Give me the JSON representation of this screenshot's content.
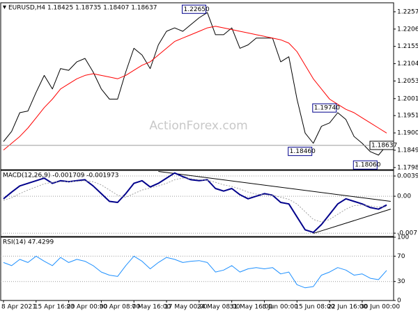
{
  "chart_data": [
    {
      "type": "line",
      "title": "EURUSD,H4  1.18425 1.18735 1.18407 1.18637",
      "watermark": "ActionForex.com",
      "ylim": [
        1.1792,
        1.2284
      ],
      "yticks": [
        1.22575,
        1.22065,
        1.21555,
        1.21045,
        1.20535,
        1.20015,
        1.19515,
        1.19005,
        1.18495,
        1.17985
      ],
      "series": [
        {
          "color": "#000000",
          "style": "solid",
          "values": [
            1.1875,
            1.1905,
            1.196,
            1.1965,
            1.202,
            1.207,
            1.203,
            1.209,
            1.2085,
            1.211,
            1.212,
            1.208,
            1.203,
            1.2,
            1.2,
            1.208,
            1.215,
            1.213,
            1.209,
            1.216,
            1.22,
            1.221,
            1.22,
            1.222,
            1.224,
            1.2255,
            1.219,
            1.219,
            1.221,
            1.215,
            1.216,
            1.218,
            1.218,
            1.218,
            1.211,
            1.2125,
            1.2,
            1.19,
            1.187,
            1.192,
            1.193,
            1.196,
            1.194,
            1.189,
            1.187,
            1.1845,
            1.1835,
            1.1864
          ]
        },
        {
          "color": "#ff0000",
          "style": "solid",
          "values": [
            1.185,
            1.187,
            1.189,
            1.1915,
            1.1945,
            1.1975,
            1.2,
            1.203,
            1.2045,
            1.206,
            1.207,
            1.2075,
            1.207,
            1.2065,
            1.206,
            1.207,
            1.2085,
            1.21,
            1.211,
            1.213,
            1.215,
            1.217,
            1.218,
            1.219,
            1.22,
            1.221,
            1.2215,
            1.221,
            1.2205,
            1.22,
            1.2195,
            1.219,
            1.2185,
            1.218,
            1.2175,
            1.2165,
            1.214,
            1.21,
            1.206,
            1.203,
            1.2,
            1.1985,
            1.197,
            1.196,
            1.1945,
            1.193,
            1.1915,
            1.19
          ]
        }
      ],
      "annotations": [
        {
          "text": "1.22650",
          "x": 25,
          "y": 1.2265
        },
        {
          "text": "1.19740",
          "x": 41,
          "y": 1.1974
        },
        {
          "text": "1.18460",
          "x": 38,
          "y": 1.1846
        },
        {
          "text": "1.18060",
          "x": 46,
          "y": 1.1806
        },
        {
          "text": "1.18637",
          "y": 1.18637,
          "axis_box": true
        }
      ]
    },
    {
      "type": "line",
      "title": "MACD(12,26,9) -0.001709 -0.001973",
      "ylim": [
        -0.0078,
        0.005
      ],
      "yticks": [
        0.003917,
        {
          "value": 0,
          "label": "0.00"
        },
        -0.007152
      ],
      "series": [
        {
          "color": "#00008b",
          "style": "thick",
          "values": [
            -0.0005,
            0.0008,
            0.002,
            0.0025,
            0.003,
            0.0035,
            0.0025,
            0.003,
            0.0028,
            0.003,
            0.0032,
            0.002,
            0.0005,
            -0.001,
            -0.0012,
            0.0005,
            0.0025,
            0.003,
            0.0018,
            0.0025,
            0.0035,
            0.0045,
            0.0038,
            0.0032,
            0.003,
            0.0032,
            0.0015,
            0.001,
            0.0015,
            0.0003,
            -0.0005,
            0,
            0.0005,
            0.0002,
            -0.0012,
            -0.0015,
            -0.004,
            -0.0065,
            -0.007,
            -0.0055,
            -0.0035,
            -0.0015,
            -0.0005,
            -0.001,
            -0.0015,
            -0.0022,
            -0.0025,
            -0.0017
          ]
        },
        {
          "color": "#a0a0a0",
          "style": "dotted",
          "values": [
            -0.0008,
            -0.0003,
            0.0005,
            0.0012,
            0.0018,
            0.0024,
            0.0027,
            0.0028,
            0.0028,
            0.0029,
            0.003,
            0.0028,
            0.0022,
            0.0012,
            0.0002,
            -0.0002,
            0.0005,
            0.0012,
            0.0016,
            0.002,
            0.0025,
            0.0032,
            0.0035,
            0.0034,
            0.0032,
            0.0031,
            0.0027,
            0.0022,
            0.0019,
            0.0014,
            0.0008,
            0.0004,
            0.0003,
            0.0002,
            -0.0002,
            -0.0006,
            -0.0015,
            -0.003,
            -0.0045,
            -0.005,
            -0.0045,
            -0.0035,
            -0.0025,
            -0.0018,
            -0.0017,
            -0.0019,
            -0.0021,
            -0.002
          ]
        }
      ],
      "trendlines": [
        {
          "x": [
            19,
            47.5
          ],
          "y": [
            0.0048,
            -0.001
          ]
        },
        {
          "x": [
            38,
            47.5
          ],
          "y": [
            -0.0072,
            -0.0025
          ]
        }
      ]
    },
    {
      "type": "line",
      "title": "RSI(14) 47.4299",
      "ylim": [
        0,
        100
      ],
      "yticks": [
        100,
        70,
        30,
        0
      ],
      "series": [
        {
          "color": "#1e90ff",
          "style": "solid",
          "values": [
            60,
            55,
            65,
            60,
            70,
            62,
            55,
            68,
            60,
            65,
            62,
            55,
            45,
            40,
            38,
            55,
            70,
            62,
            50,
            60,
            68,
            65,
            60,
            62,
            63,
            60,
            45,
            48,
            55,
            45,
            50,
            52,
            50,
            52,
            42,
            45,
            25,
            20,
            22,
            40,
            45,
            52,
            48,
            40,
            42,
            35,
            33,
            47.4299
          ]
        }
      ],
      "categories": [
        "8 Apr 2021",
        null,
        null,
        null,
        "15 Apr 16:00",
        null,
        null,
        null,
        "23 Apr 00:00",
        null,
        null,
        null,
        "30 Apr 08:00",
        null,
        null,
        null,
        "7 May 16:00",
        null,
        null,
        null,
        "17 May 00:00",
        null,
        null,
        null,
        "24 May 08:00",
        null,
        null,
        null,
        "31 May 16:00",
        null,
        null,
        null,
        "8 Jun 00:00",
        null,
        null,
        null,
        "15 Jun 08:00",
        null,
        null,
        null,
        "22 Jun 16:00",
        null,
        null,
        null,
        "30 Jun 00:00",
        null,
        null,
        null
      ]
    }
  ]
}
